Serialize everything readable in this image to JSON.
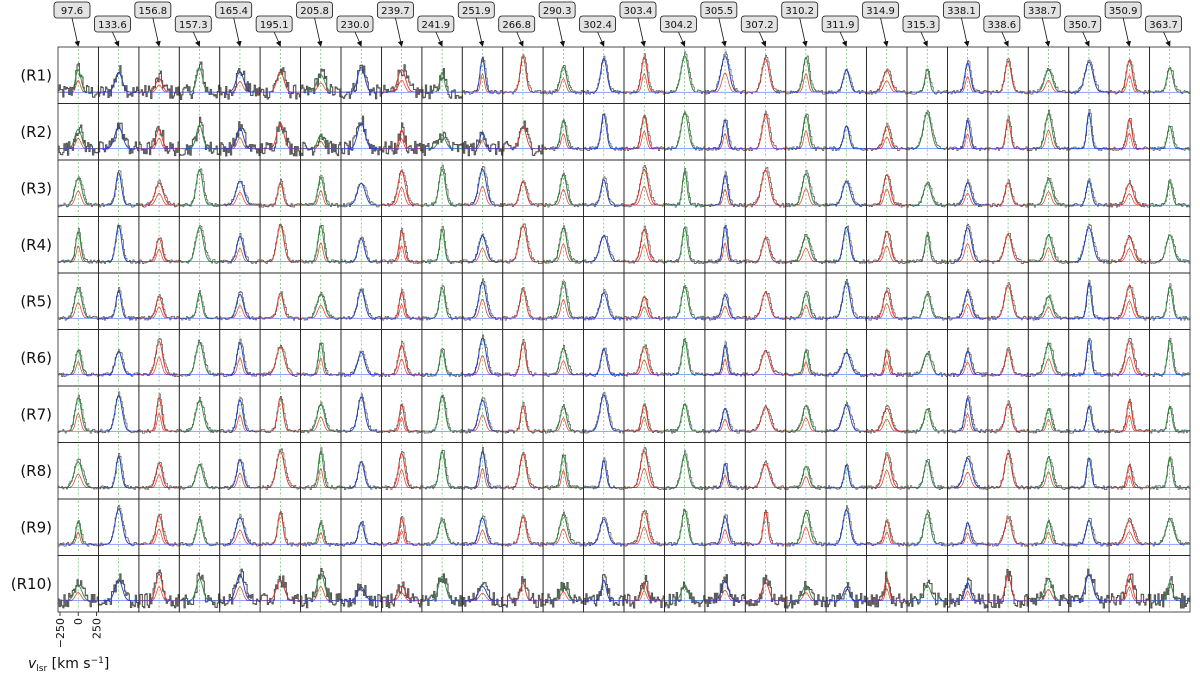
{
  "chart_data": {
    "type": "line",
    "frequencies_ghz": [
      "97.6",
      "133.6",
      "156.8",
      "157.3",
      "165.4",
      "195.1",
      "205.8",
      "230.0",
      "239.7",
      "241.9",
      "251.9",
      "266.8",
      "290.3",
      "302.4",
      "303.4",
      "304.2",
      "305.5",
      "307.2",
      "310.2",
      "311.9",
      "314.9",
      "315.3",
      "338.1",
      "338.6",
      "338.7",
      "350.7",
      "350.9",
      "363.7"
    ],
    "rows": [
      "(R1)",
      "(R2)",
      "(R3)",
      "(R4)",
      "(R5)",
      "(R6)",
      "(R7)",
      "(R8)",
      "(R9)",
      "(R10)"
    ],
    "xaxis": {
      "ticks": [
        "−250",
        "0",
        "250"
      ],
      "label_main": "v",
      "label_sub": "lsr",
      "label_units": " [km s",
      "label_sup": "−1",
      "label_close": "]"
    },
    "series_colors": {
      "observed": "#555555",
      "model_green": "#2e8b3a",
      "model_blue": "#1f3fbf",
      "model_red": "#d83a2a",
      "guide_line": "#4caf50",
      "baseline": "#2040ff"
    },
    "grid": false
  }
}
